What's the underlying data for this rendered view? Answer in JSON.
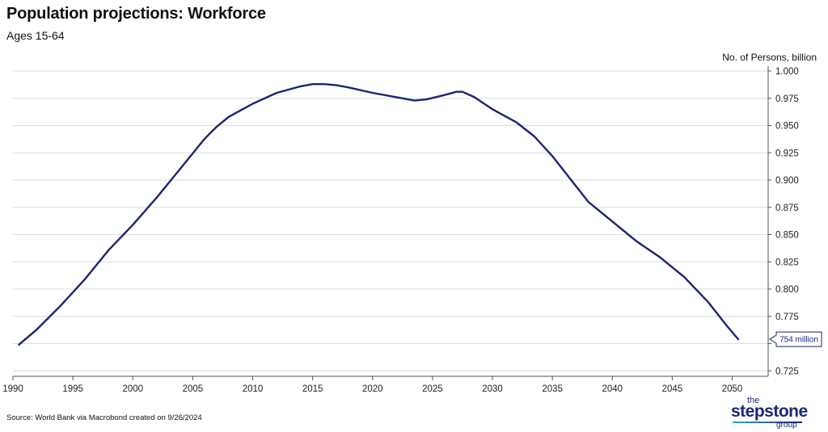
{
  "header": {
    "title": "Population projections: Workforce",
    "subtitle": "Ages 15-64",
    "y_unit": "No. of Persons, billion"
  },
  "footer": {
    "source": "Source: World Bank via Macrobond created on 9/26/2024"
  },
  "logo": {
    "the": "the",
    "main": "stepstone",
    "group": "group"
  },
  "colors": {
    "line": "#1a2573",
    "grid": "#dcdcdc",
    "axis": "#555555"
  },
  "chart_data": {
    "type": "line",
    "title": "Population projections: Workforce",
    "subtitle": "Ages 15-64",
    "ylabel": "No. of Persons, billion",
    "xlabel": "",
    "xlim": [
      1990,
      2053
    ],
    "ylim": [
      0.72,
      1.0
    ],
    "x_ticks": [
      1990,
      1995,
      2000,
      2005,
      2010,
      2015,
      2020,
      2025,
      2030,
      2035,
      2040,
      2045,
      2050
    ],
    "y_ticks": [
      0.725,
      0.75,
      0.775,
      0.8,
      0.825,
      0.85,
      0.875,
      0.9,
      0.925,
      0.95,
      0.975,
      1.0
    ],
    "y_tick_labels": [
      "0.725",
      "",
      "0.775",
      "0.800",
      "0.825",
      "0.850",
      "0.875",
      "0.900",
      "0.925",
      "0.950",
      "0.975",
      "1.000"
    ],
    "grid": true,
    "series": [
      {
        "name": "Workforce (ages 15-64)",
        "x": [
          1990.5,
          1992,
          1994,
          1996,
          1998,
          2000,
          2002,
          2004,
          2006,
          2007,
          2008,
          2009,
          2010,
          2012,
          2014,
          2015,
          2016,
          2017,
          2018,
          2020,
          2022,
          2023.5,
          2024.5,
          2026,
          2027,
          2027.5,
          2028.5,
          2030,
          2032,
          2033.5,
          2035,
          2036,
          2038,
          2040,
          2042,
          2044,
          2046,
          2048,
          2049.5,
          2050.5
        ],
        "values": [
          0.749,
          0.763,
          0.785,
          0.809,
          0.836,
          0.859,
          0.884,
          0.911,
          0.938,
          0.949,
          0.958,
          0.964,
          0.97,
          0.98,
          0.986,
          0.988,
          0.988,
          0.987,
          0.985,
          0.98,
          0.976,
          0.973,
          0.974,
          0.978,
          0.981,
          0.981,
          0.976,
          0.965,
          0.953,
          0.94,
          0.922,
          0.908,
          0.88,
          0.862,
          0.844,
          0.829,
          0.811,
          0.788,
          0.767,
          0.754
        ]
      }
    ],
    "annotation": {
      "label": "754 million",
      "value": 0.754,
      "position": "right-axis"
    }
  }
}
